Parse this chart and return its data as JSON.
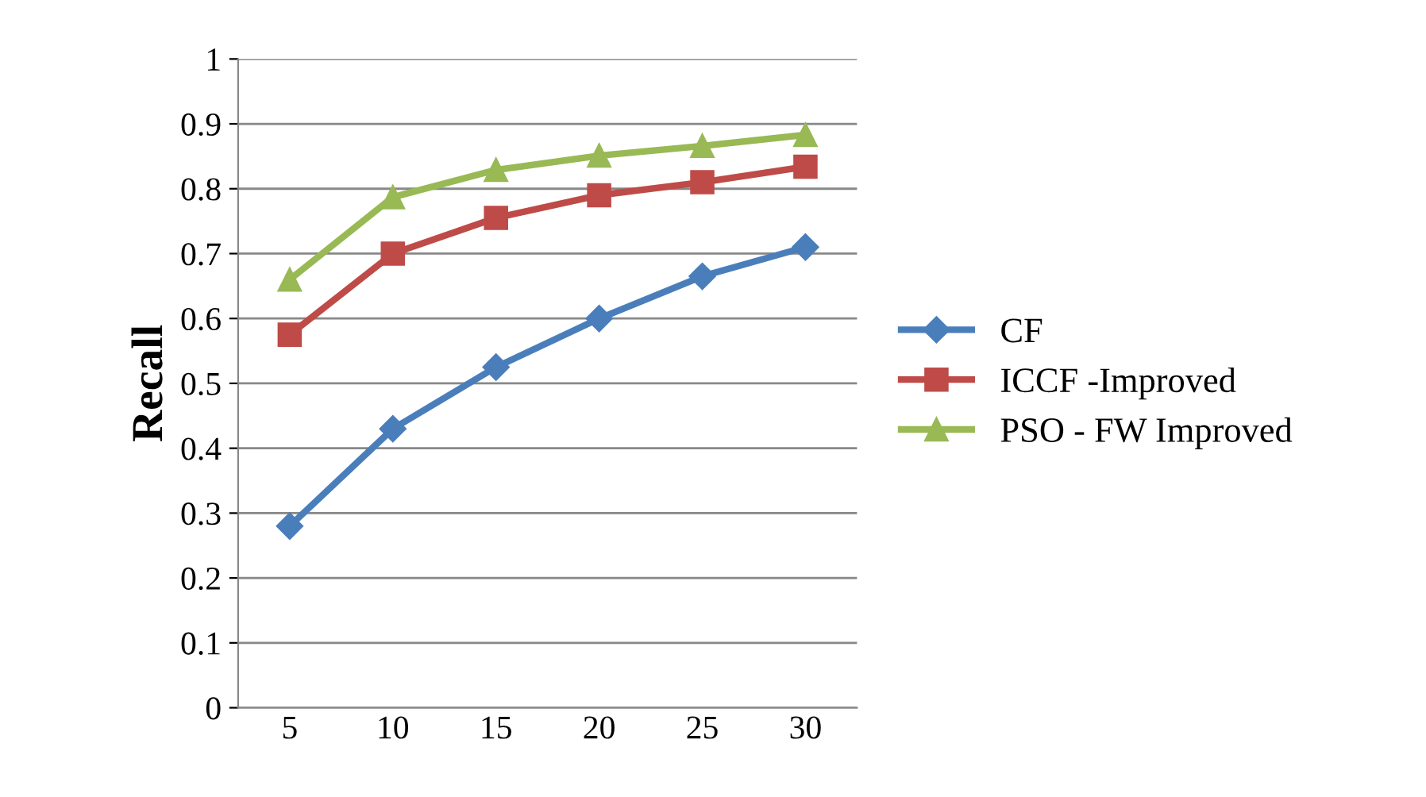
{
  "chart_data": {
    "type": "line",
    "ylabel": "Recall",
    "categories": [
      "5",
      "10",
      "15",
      "20",
      "25",
      "30"
    ],
    "series": [
      {
        "name": "CF",
        "color": "#4a7ebb",
        "marker": "diamond",
        "values": [
          0.28,
          0.43,
          0.525,
          0.6,
          0.665,
          0.71
        ]
      },
      {
        "name": "ICCF -Improved",
        "color": "#be4b48",
        "marker": "square",
        "values": [
          0.575,
          0.7,
          0.755,
          0.79,
          0.81,
          0.834
        ]
      },
      {
        "name": "PSO - FW Improved",
        "color": "#98b954",
        "marker": "triangle",
        "values": [
          0.66,
          0.787,
          0.829,
          0.851,
          0.866,
          0.883
        ]
      }
    ],
    "ylim": [
      0,
      1
    ],
    "yticks": [
      0,
      0.1,
      0.2,
      0.3,
      0.4,
      0.5,
      0.6,
      0.7,
      0.8,
      0.9,
      1
    ],
    "grid": "y",
    "legend": "right"
  }
}
